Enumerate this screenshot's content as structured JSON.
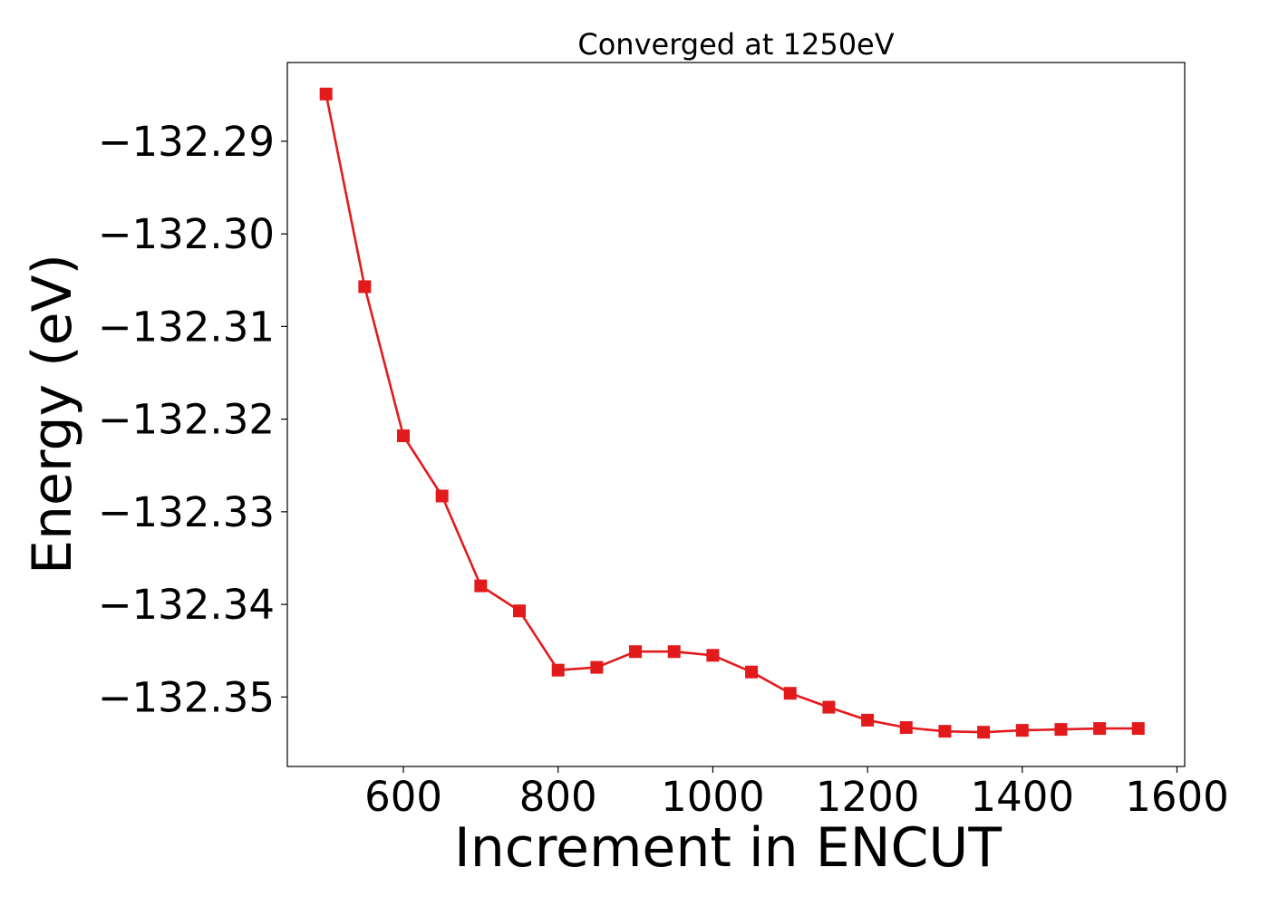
{
  "chart_data": {
    "type": "line",
    "title": "Converged at 1250eV",
    "xlabel": "Increment in ENCUT",
    "ylabel": "Energy (eV)",
    "xlim": [
      450,
      1610
    ],
    "ylim": [
      -132.3575,
      -132.2815
    ],
    "xticks": [
      600,
      800,
      1000,
      1200,
      1400,
      1600
    ],
    "yticks": [
      -132.29,
      -132.3,
      -132.31,
      -132.32,
      -132.33,
      -132.34,
      -132.35
    ],
    "xtick_labels": [
      "600",
      "800",
      "1000",
      "1200",
      "1400",
      "1600"
    ],
    "ytick_labels": [
      "−132.29",
      "−132.30",
      "−132.31",
      "−132.32",
      "−132.33",
      "−132.34",
      "−132.35"
    ],
    "grid": false,
    "series": [
      {
        "x": [
          500,
          550,
          600,
          650,
          700,
          750,
          800,
          850,
          900,
          950,
          1000,
          1050,
          1100,
          1150,
          1200,
          1250,
          1300,
          1350,
          1400,
          1450,
          1500,
          1550
        ],
        "y": [
          -132.2849,
          -132.3057,
          -132.3218,
          -132.3283,
          -132.338,
          -132.3407,
          -132.3471,
          -132.3468,
          -132.3451,
          -132.3451,
          -132.3455,
          -132.3473,
          -132.3496,
          -132.3511,
          -132.3525,
          -132.3533,
          -132.3537,
          -132.3538,
          -132.3536,
          -132.3535,
          -132.3534,
          -132.3534
        ],
        "color": "#e31a1c",
        "marker": "square"
      }
    ]
  }
}
